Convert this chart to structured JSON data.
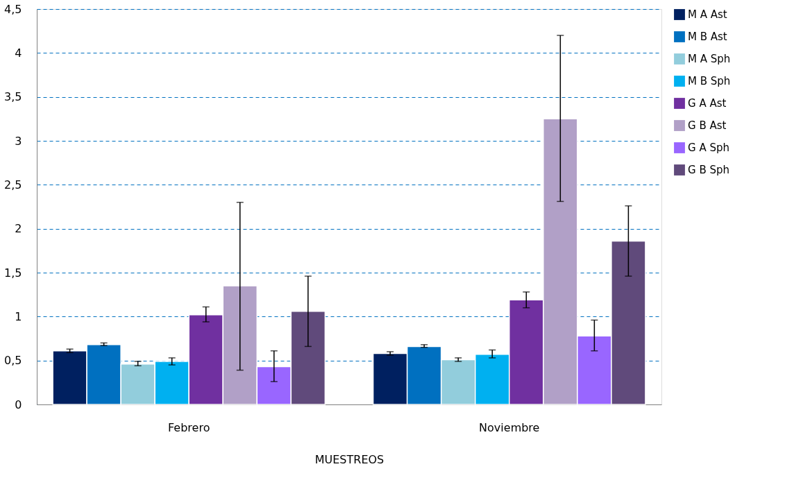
{
  "chart_data": {
    "type": "bar",
    "xlabel": "MUESTREOS",
    "categories": [
      "Febrero",
      "Noviembre"
    ],
    "ylim": [
      0,
      4.5
    ],
    "yticks": [
      0,
      {
        "value": 0.5,
        "label": "0,5"
      },
      1,
      {
        "value": 1.5,
        "label": "1,5"
      },
      2,
      {
        "value": 2.5,
        "label": "2,5"
      },
      3,
      {
        "value": 3.5,
        "label": "3,5"
      },
      4,
      {
        "value": 4.5,
        "label": "4,5"
      }
    ],
    "grid": "y",
    "legend": "right",
    "series": [
      {
        "name": "M A Ast",
        "color": "#002060",
        "values": [
          0.61,
          0.58
        ],
        "errors": [
          [
            0.59,
            0.63
          ],
          [
            0.56,
            0.6
          ]
        ]
      },
      {
        "name": "M B Ast",
        "color": "#0070c0",
        "values": [
          0.68,
          0.66
        ],
        "errors": [
          [
            0.67,
            0.7
          ],
          [
            0.65,
            0.68
          ]
        ]
      },
      {
        "name": "M A Sph",
        "color": "#92cddc",
        "values": [
          0.46,
          0.51
        ],
        "errors": [
          [
            0.44,
            0.49
          ],
          [
            0.49,
            0.53
          ]
        ]
      },
      {
        "name": "M B Sph",
        "color": "#00b0f0",
        "values": [
          0.49,
          0.57
        ],
        "errors": [
          [
            0.45,
            0.53
          ],
          [
            0.53,
            0.62
          ]
        ]
      },
      {
        "name": "G A Ast",
        "color": "#7030a0",
        "values": [
          1.02,
          1.19
        ],
        "errors": [
          [
            0.94,
            1.11
          ],
          [
            1.1,
            1.28
          ]
        ]
      },
      {
        "name": "G B Ast",
        "color": "#b1a0c7",
        "values": [
          1.35,
          3.25
        ],
        "errors": [
          [
            0.39,
            2.3
          ],
          [
            2.31,
            4.2
          ]
        ]
      },
      {
        "name": "G A Sph",
        "color": "#9966ff",
        "values": [
          0.43,
          0.78
        ],
        "errors": [
          [
            0.26,
            0.61
          ],
          [
            0.61,
            0.96
          ]
        ]
      },
      {
        "name": "G B Sph",
        "color": "#604a7b",
        "values": [
          1.06,
          1.86
        ],
        "errors": [
          [
            0.66,
            1.46
          ],
          [
            1.46,
            2.26
          ]
        ]
      }
    ]
  }
}
